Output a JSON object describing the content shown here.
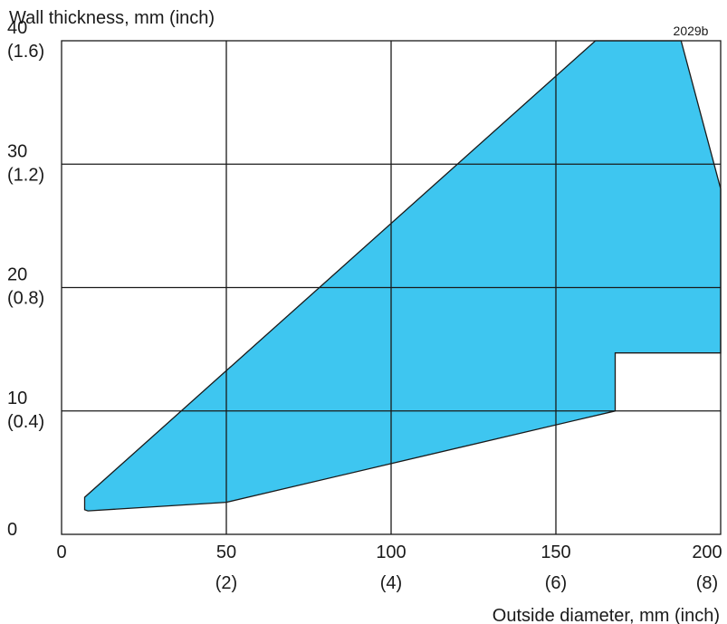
{
  "chart_data": {
    "type": "area",
    "code": "2029b",
    "ylabel": "Wall thickness, mm (inch)",
    "xlabel": "Outside diameter, mm (inch)",
    "xlim": [
      0,
      200
    ],
    "ylim": [
      0,
      40
    ],
    "grid": true,
    "fill_color": "#3ec6f0",
    "x_ticks": [
      {
        "value": 0,
        "label": "0",
        "sublabel": ""
      },
      {
        "value": 50,
        "label": "50",
        "sublabel": "(2)"
      },
      {
        "value": 100,
        "label": "100",
        "sublabel": "(4)"
      },
      {
        "value": 150,
        "label": "150",
        "sublabel": "(6)"
      },
      {
        "value": 200,
        "label": "200",
        "sublabel": "(8)"
      }
    ],
    "y_ticks": [
      {
        "value": 0,
        "label": "0",
        "sublabel": ""
      },
      {
        "value": 10,
        "label": "10",
        "sublabel": "(0.4)"
      },
      {
        "value": 20,
        "label": "20",
        "sublabel": "(0.8)"
      },
      {
        "value": 30,
        "label": "30",
        "sublabel": "(1.2)"
      },
      {
        "value": 40,
        "label": "40",
        "sublabel": "(1.6)"
      }
    ],
    "region": [
      [
        7,
        2.0
      ],
      [
        7,
        3.0
      ],
      [
        162,
        40
      ],
      [
        188,
        40
      ],
      [
        200,
        28
      ],
      [
        200,
        14.7
      ],
      [
        168,
        14.7
      ],
      [
        168,
        10
      ],
      [
        50,
        2.6
      ],
      [
        8,
        1.9
      ]
    ]
  }
}
